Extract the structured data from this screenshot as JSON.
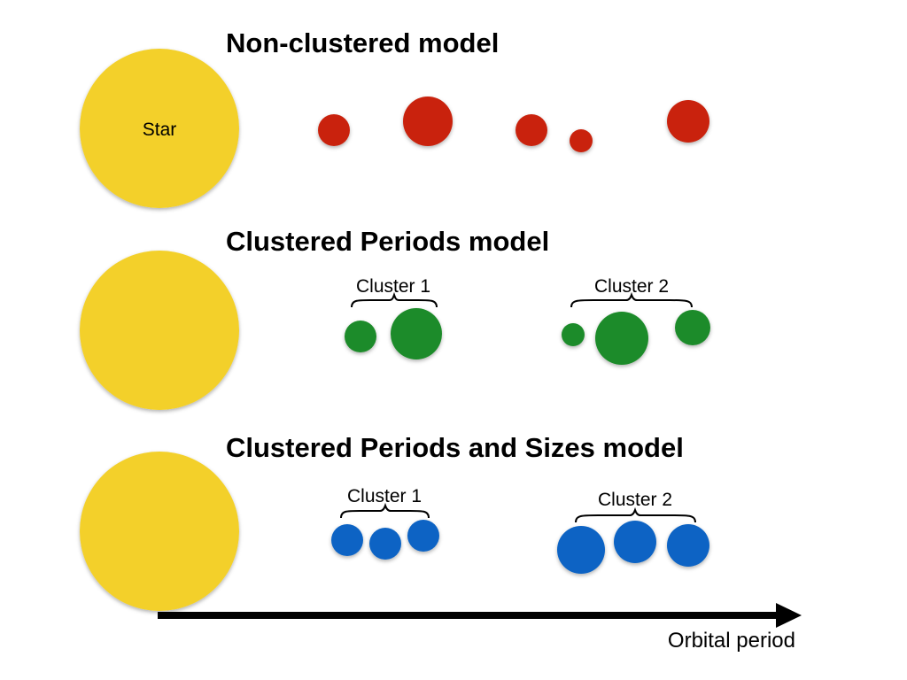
{
  "colors": {
    "star": "#F3D02A",
    "non_clustered_planet": "#C9240C",
    "clustered_periods_planet": "#1E8B2A",
    "clustered_sizes_planet": "#0A64C4",
    "arrow": "#000000",
    "text": "#000000"
  },
  "star_label": "Star",
  "axis_label": "Orbital period",
  "models": [
    {
      "title": "Non-clustered model",
      "clusters": []
    },
    {
      "title": "Clustered Periods model",
      "clusters": [
        {
          "label": "Cluster 1"
        },
        {
          "label": "Cluster 2"
        }
      ]
    },
    {
      "title": "Clustered Periods and Sizes model",
      "clusters": [
        {
          "label": "Cluster 1"
        },
        {
          "label": "Cluster 2"
        }
      ]
    }
  ]
}
